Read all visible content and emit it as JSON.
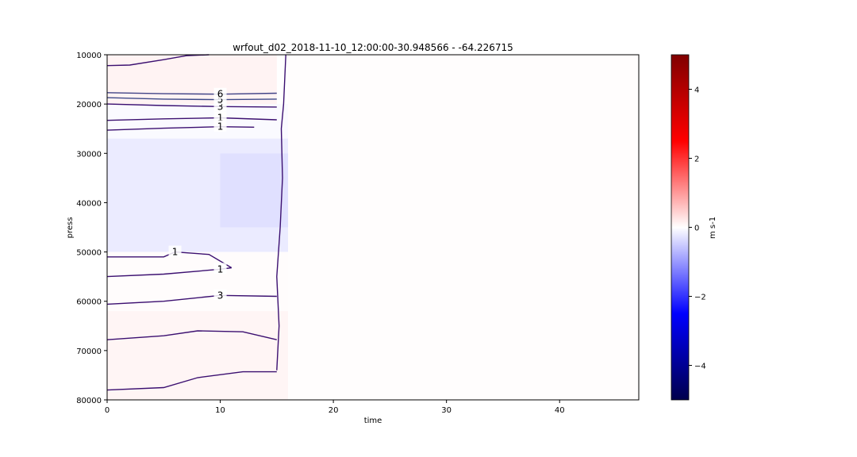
{
  "chart_data": {
    "type": "heatmap",
    "title": "wrfout_d02_2018-11-10_12:00:00-30.948566 - -64.226715",
    "xlabel": "time",
    "ylabel": "press",
    "xlim": [
      0,
      47
    ],
    "ylim": [
      80000,
      10000
    ],
    "xticks": [
      0,
      10,
      20,
      30,
      40
    ],
    "yticks": [
      10000,
      20000,
      30000,
      40000,
      50000,
      60000,
      70000,
      80000
    ],
    "colorbar": {
      "label": "m s-1",
      "range": [
        -5,
        5
      ],
      "ticks": [
        4,
        2,
        0,
        -2,
        -4
      ],
      "tick_labels": [
        "4",
        "2",
        "0",
        "−2",
        "−4"
      ],
      "colormap": "seismic"
    },
    "field_patches": [
      {
        "x": [
          0,
          15
        ],
        "y": [
          10000,
          20000
        ],
        "value": 0.12
      },
      {
        "x": [
          0,
          16
        ],
        "y": [
          20000,
          27000
        ],
        "value": -0.05
      },
      {
        "x": [
          0,
          16
        ],
        "y": [
          27000,
          50000
        ],
        "value": -0.2
      },
      {
        "x": [
          10,
          16
        ],
        "y": [
          30000,
          45000
        ],
        "value": -0.3
      },
      {
        "x": [
          0,
          16
        ],
        "y": [
          50000,
          62000
        ],
        "value": 0.03
      },
      {
        "x": [
          0,
          16
        ],
        "y": [
          62000,
          80000
        ],
        "value": 0.1
      },
      {
        "x": [
          16,
          47
        ],
        "y": [
          10000,
          80000
        ],
        "value": 0.02
      }
    ],
    "contours": [
      {
        "label": "1",
        "points": [
          [
            0,
            23300
          ],
          [
            5,
            23000
          ],
          [
            10,
            22800
          ],
          [
            15,
            23200
          ]
        ]
      },
      {
        "label": "1",
        "points": [
          [
            0,
            25300
          ],
          [
            5,
            24900
          ],
          [
            10,
            24600
          ],
          [
            13,
            24700
          ]
        ]
      },
      {
        "label": "3",
        "points": [
          [
            0,
            20000
          ],
          [
            5,
            20300
          ],
          [
            10,
            20500
          ],
          [
            15,
            20600
          ]
        ]
      },
      {
        "label": "5",
        "points": [
          [
            0,
            18700
          ],
          [
            5,
            19000
          ],
          [
            10,
            19100
          ],
          [
            15,
            19000
          ]
        ]
      },
      {
        "label": "6",
        "points": [
          [
            0,
            17700
          ],
          [
            5,
            17900
          ],
          [
            10,
            18000
          ],
          [
            15,
            17800
          ]
        ]
      },
      {
        "label": "",
        "points": [
          [
            0,
            12200
          ],
          [
            2,
            12100
          ],
          [
            5,
            11000
          ],
          [
            7,
            10200
          ],
          [
            9,
            10000
          ]
        ]
      },
      {
        "label": "1",
        "points": [
          [
            0,
            51000
          ],
          [
            5,
            51000
          ],
          [
            6,
            50000
          ],
          [
            9,
            50500
          ],
          [
            11,
            53200
          ]
        ]
      },
      {
        "label": "1",
        "points": [
          [
            0,
            55000
          ],
          [
            5,
            54500
          ],
          [
            10,
            53500
          ],
          [
            11,
            53200
          ]
        ]
      },
      {
        "label": "3",
        "points": [
          [
            0,
            60600
          ],
          [
            5,
            60000
          ],
          [
            10,
            58800
          ],
          [
            15,
            59000
          ]
        ]
      },
      {
        "label": "",
        "points": [
          [
            0,
            67800
          ],
          [
            5,
            67000
          ],
          [
            8,
            66000
          ],
          [
            12,
            66200
          ],
          [
            15,
            67800
          ]
        ]
      },
      {
        "label": "",
        "points": [
          [
            0,
            78000
          ],
          [
            5,
            77500
          ],
          [
            8,
            75500
          ],
          [
            12,
            74300
          ],
          [
            15,
            74300
          ]
        ]
      },
      {
        "label": "",
        "points": [
          [
            15.8,
            10000
          ],
          [
            15.6,
            20000
          ],
          [
            15.4,
            25000
          ],
          [
            15.5,
            35000
          ],
          [
            15.3,
            45000
          ],
          [
            15.0,
            55000
          ],
          [
            15.2,
            65000
          ],
          [
            15.0,
            74000
          ]
        ]
      }
    ]
  }
}
